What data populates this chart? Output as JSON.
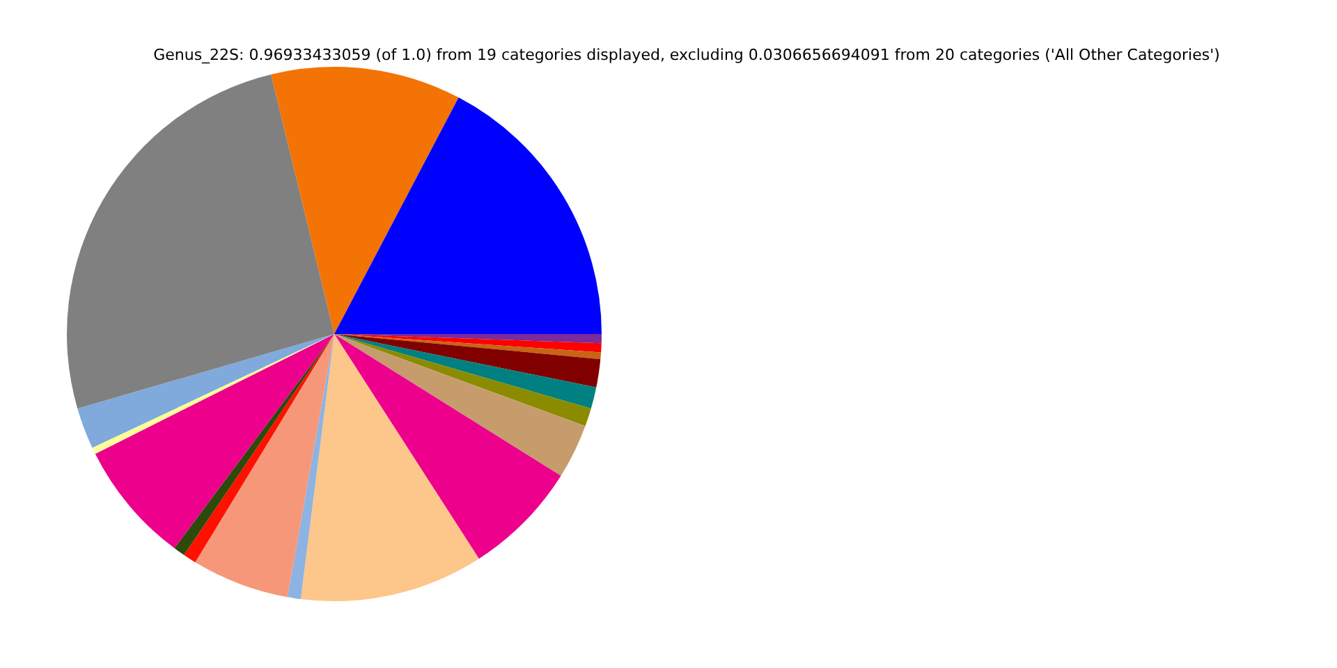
{
  "chart_data": {
    "type": "pie",
    "title": "Genus_22S: 0.96933433059 (of 1.0) from 19 categories displayed, excluding 0.0306656694091 from 20 categories ('All Other Categories')",
    "categories": [
      null,
      null,
      null,
      null,
      null,
      null,
      null,
      null,
      null,
      null,
      null,
      null,
      null,
      null,
      null,
      null,
      null,
      null,
      null
    ],
    "values": [
      17.3,
      11.5,
      25.7,
      2.5,
      0.4,
      7.4,
      0.7,
      0.8,
      5.9,
      0.8,
      11.1,
      7.0,
      3.3,
      1.1,
      1.3,
      1.7,
      0.4,
      0.55,
      0.55
    ],
    "colors": [
      "#0000ff",
      "#f37305",
      "#808080",
      "#80aadc",
      "#ffff99",
      "#ec008c",
      "#2e4a0b",
      "#ff1000",
      "#f7977a",
      "#8db3e2",
      "#fdc68a",
      "#ec008c",
      "#c69c6d",
      "#8b8b00",
      "#008080",
      "#800000",
      "#c86414",
      "#ff0000",
      "#7b2b9b"
    ],
    "legend": false
  }
}
